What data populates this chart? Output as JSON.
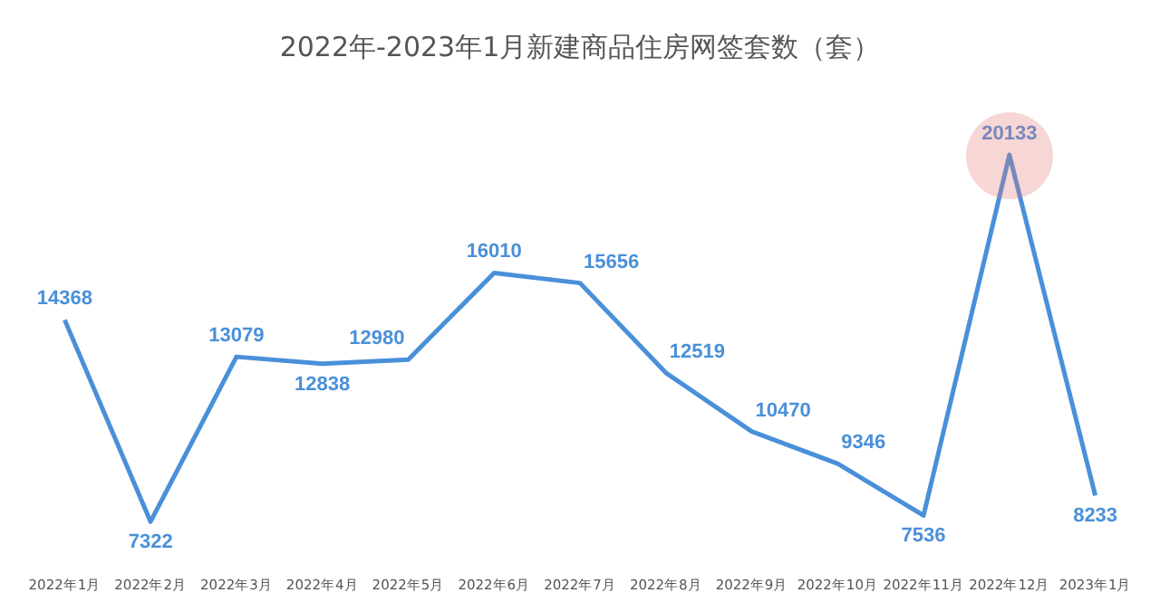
{
  "chart_data": {
    "type": "line",
    "title": "2022年-2023年1月新建商品住房网签套数（套）",
    "categories": [
      "2022年1月",
      "2022年2月",
      "2022年3月",
      "2022年4月",
      "2022年5月",
      "2022年6月",
      "2022年7月",
      "2022年8月",
      "2022年9月",
      "2022年10月",
      "2022年11月",
      "2022年12月",
      "2023年1月"
    ],
    "series": [
      {
        "color": "#4a90d9",
        "values": [
          14368,
          7322,
          13079,
          12838,
          12980,
          16010,
          15656,
          12519,
          10470,
          9346,
          7536,
          20133,
          8233
        ]
      }
    ],
    "data_labels": true,
    "tick_labels": "x",
    "grid": false,
    "legend": false,
    "marker": "none",
    "line_style": "solid"
  }
}
